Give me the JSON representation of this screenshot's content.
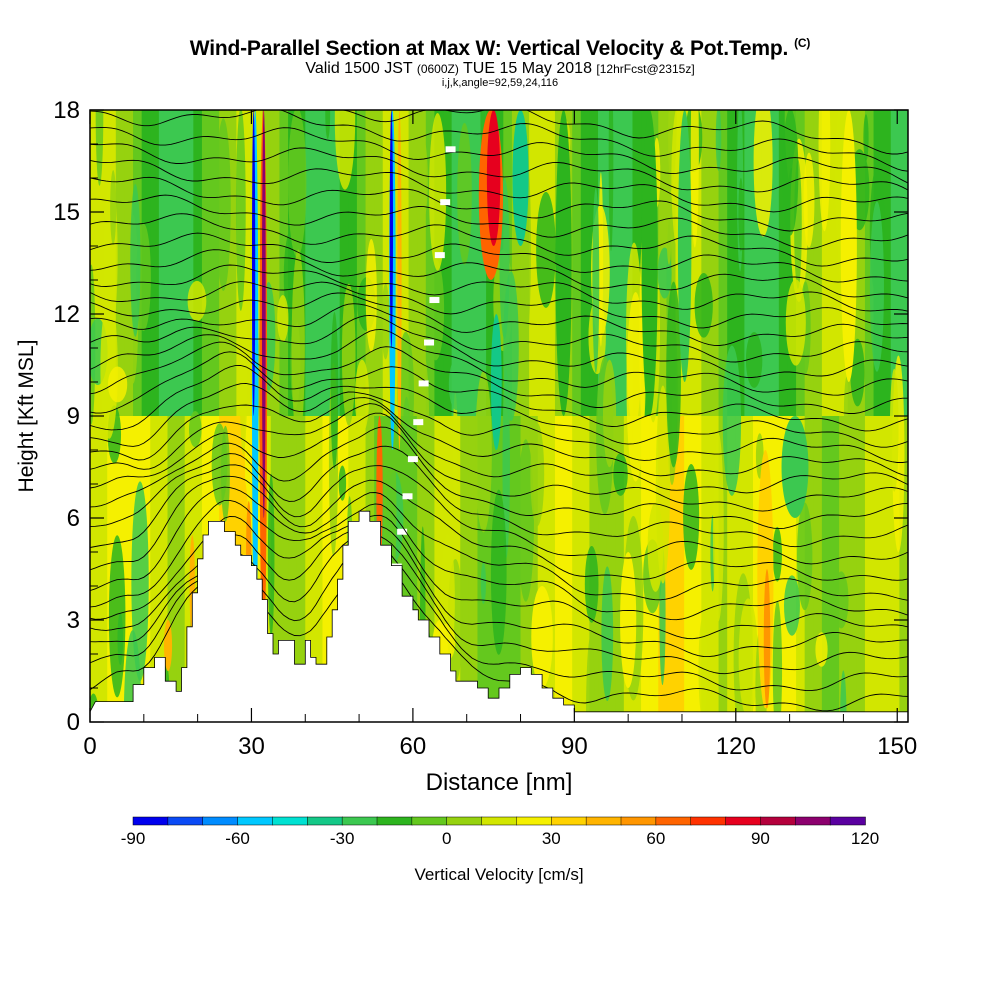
{
  "header": {
    "title": "Wind-Parallel Section at Max W: Vertical Velocity & Pot.Temp.",
    "copyright": "(C)",
    "valid_prefix": "Valid 1500 JST",
    "valid_utc": "(0600Z)",
    "valid_date": "TUE 15 May 2018",
    "forecast": "[12hrFcst@2315z]",
    "params": "i,j,k,angle=92,59,24,116"
  },
  "chart_data": {
    "type": "heatmap",
    "title": "Wind-Parallel Section at Max W: Vertical Velocity & Pot.Temp.",
    "xlabel": "Distance [nm]",
    "ylabel": "Height [Kft MSL]",
    "xlim": [
      0,
      152
    ],
    "ylim": [
      0,
      18
    ],
    "x_ticks": [
      "0",
      "30",
      "60",
      "90",
      "120",
      "150"
    ],
    "x_tick_values": [
      0,
      30,
      60,
      90,
      120,
      150
    ],
    "y_ticks": [
      "0",
      "3",
      "6",
      "9",
      "12",
      "15",
      "18"
    ],
    "y_tick_values": [
      0,
      3,
      6,
      9,
      12,
      15,
      18
    ],
    "colorbar": {
      "label": "Vertical Velocity [cm/s]",
      "min": -90,
      "max": 120,
      "step": 10,
      "tick_labels": [
        "-90",
        "-60",
        "-30",
        "0",
        "30",
        "60",
        "90",
        "120"
      ],
      "tick_values": [
        -90,
        -60,
        -30,
        0,
        30,
        60,
        90,
        120
      ],
      "colors": [
        "#0000ee",
        "#0a4af5",
        "#008cff",
        "#00c8ff",
        "#00e1d2",
        "#14c887",
        "#3cc850",
        "#2db41e",
        "#64c81e",
        "#96d20f",
        "#d2e600",
        "#f5f000",
        "#ffd200",
        "#ffb400",
        "#ff9600",
        "#ff6400",
        "#ff3200",
        "#e6001e",
        "#b4003c",
        "#8c006e",
        "#5a00a0"
      ]
    },
    "vertical_velocity_columns": [
      {
        "x": 28.5,
        "w": 2.0,
        "value": 35,
        "y0": 3.2,
        "y1": 7.2
      },
      {
        "x": 29.5,
        "w": 1.0,
        "value": 55,
        "y0": 3.5,
        "y1": 6.5
      },
      {
        "x": 30.7,
        "w": 1.2,
        "value": -60,
        "y0": 2,
        "y1": 18
      },
      {
        "x": 30.4,
        "w": 0.6,
        "value": -90,
        "y0": 9,
        "y1": 18
      },
      {
        "x": 32.2,
        "w": 1.4,
        "value": 60,
        "y0": 2,
        "y1": 18
      },
      {
        "x": 32.3,
        "w": 0.7,
        "value": 100,
        "y0": 6,
        "y1": 18
      },
      {
        "x": 53.8,
        "w": 1.2,
        "value": 60,
        "y0": 4.5,
        "y1": 9
      },
      {
        "x": 56.2,
        "w": 1.2,
        "value": -60,
        "y0": 8,
        "y1": 18
      },
      {
        "x": 56.0,
        "w": 0.6,
        "value": -85,
        "y0": 11,
        "y1": 18
      },
      {
        "x": 57.5,
        "w": 0.8,
        "value": 40,
        "y0": 8,
        "y1": 18
      },
      {
        "x": 74.5,
        "w": 4.5,
        "value": 60,
        "y0": 13,
        "y1": 18
      },
      {
        "x": 75.0,
        "w": 2.5,
        "value": 80,
        "y0": 14,
        "y1": 18
      },
      {
        "x": 75.5,
        "w": 2.0,
        "value": -40,
        "y0": 8,
        "y1": 12
      },
      {
        "x": 80.0,
        "w": 3.0,
        "value": -40,
        "y0": 14,
        "y1": 18
      },
      {
        "x": 125.5,
        "w": 3.0,
        "value": 35,
        "y0": 0.4,
        "y1": 8
      },
      {
        "x": 125.8,
        "w": 1.2,
        "value": 50,
        "y0": 0.4,
        "y1": 4.5
      },
      {
        "x": 14.5,
        "w": 1.5,
        "value": 40,
        "y0": 1.5,
        "y1": 3.0
      },
      {
        "x": 19.0,
        "w": 1.0,
        "value": 40,
        "y0": 2.5,
        "y1": 5.5
      },
      {
        "x": 65.0,
        "w": 3.0,
        "value": 20,
        "y0": 1.0,
        "y1": 3.0
      },
      {
        "x": 84.0,
        "w": 4.0,
        "value": 20,
        "y0": 1.0,
        "y1": 4.0
      },
      {
        "x": 100.0,
        "w": 3.0,
        "value": 20,
        "y0": 1.0,
        "y1": 5.0
      },
      {
        "x": 88.0,
        "w": 3.0,
        "value": -20,
        "y0": 9,
        "y1": 18
      },
      {
        "x": 104.0,
        "w": 3.0,
        "value": -20,
        "y0": 9,
        "y1": 18
      },
      {
        "x": 110.5,
        "w": 2.5,
        "value": -25,
        "y0": 10,
        "y1": 18
      },
      {
        "x": 131.0,
        "w": 5.0,
        "value": -25,
        "y0": 6,
        "y1": 9
      },
      {
        "x": 141.0,
        "w": 3.0,
        "value": 20,
        "y0": 10,
        "y1": 18
      }
    ],
    "terrain_profile_kft": [
      [
        0,
        0.3
      ],
      [
        1,
        0.6
      ],
      [
        8,
        0.6
      ],
      [
        8,
        1.1
      ],
      [
        10,
        1.1
      ],
      [
        10,
        1.6
      ],
      [
        12,
        1.6
      ],
      [
        12,
        1.9
      ],
      [
        14,
        1.9
      ],
      [
        14,
        1.2
      ],
      [
        16,
        1.2
      ],
      [
        16,
        0.9
      ],
      [
        17,
        0.9
      ],
      [
        17,
        1.6
      ],
      [
        18,
        1.6
      ],
      [
        18,
        2.8
      ],
      [
        19,
        2.8
      ],
      [
        19,
        3.8
      ],
      [
        20,
        3.8
      ],
      [
        20,
        4.8
      ],
      [
        21,
        4.8
      ],
      [
        21,
        5.5
      ],
      [
        22,
        5.5
      ],
      [
        22,
        5.9
      ],
      [
        25,
        5.9
      ],
      [
        25,
        5.6
      ],
      [
        27,
        5.6
      ],
      [
        27,
        5.2
      ],
      [
        28,
        5.2
      ],
      [
        28,
        4.9
      ],
      [
        30,
        4.9
      ],
      [
        30,
        4.6
      ],
      [
        31,
        4.6
      ],
      [
        31,
        4.2
      ],
      [
        32,
        4.2
      ],
      [
        32,
        3.6
      ],
      [
        33,
        3.6
      ],
      [
        33,
        2.6
      ],
      [
        34,
        2.6
      ],
      [
        34,
        2.0
      ],
      [
        35,
        2.0
      ],
      [
        35,
        2.4
      ],
      [
        38,
        2.4
      ],
      [
        38,
        1.7
      ],
      [
        40,
        1.7
      ],
      [
        40,
        2.4
      ],
      [
        41,
        2.4
      ],
      [
        41,
        1.9
      ],
      [
        42,
        1.9
      ],
      [
        42,
        1.7
      ],
      [
        44,
        1.7
      ],
      [
        44,
        2.5
      ],
      [
        45,
        2.5
      ],
      [
        45,
        3.3
      ],
      [
        46,
        3.3
      ],
      [
        46,
        4.2
      ],
      [
        47,
        4.2
      ],
      [
        47,
        5.2
      ],
      [
        48,
        5.2
      ],
      [
        48,
        5.9
      ],
      [
        50,
        5.9
      ],
      [
        50,
        6.2
      ],
      [
        52,
        6.2
      ],
      [
        52,
        5.9
      ],
      [
        54,
        5.9
      ],
      [
        54,
        5.2
      ],
      [
        56,
        5.2
      ],
      [
        56,
        4.6
      ],
      [
        58,
        4.6
      ],
      [
        58,
        3.7
      ],
      [
        60,
        3.7
      ],
      [
        60,
        3.3
      ],
      [
        61,
        3.3
      ],
      [
        61,
        3.0
      ],
      [
        63,
        3.0
      ],
      [
        63,
        2.5
      ],
      [
        65,
        2.5
      ],
      [
        65,
        2.0
      ],
      [
        67,
        2.0
      ],
      [
        67,
        1.5
      ],
      [
        68,
        1.5
      ],
      [
        68,
        1.2
      ],
      [
        72,
        1.2
      ],
      [
        72,
        1.0
      ],
      [
        74,
        1.0
      ],
      [
        74,
        0.7
      ],
      [
        76,
        0.7
      ],
      [
        76,
        1.0
      ],
      [
        78,
        1.0
      ],
      [
        78,
        1.4
      ],
      [
        80,
        1.4
      ],
      [
        80,
        1.6
      ],
      [
        82,
        1.6
      ],
      [
        82,
        1.4
      ],
      [
        84,
        1.4
      ],
      [
        84,
        1.0
      ],
      [
        86,
        1.0
      ],
      [
        86,
        0.7
      ],
      [
        88,
        0.7
      ],
      [
        88,
        0.5
      ],
      [
        90,
        0.5
      ],
      [
        90,
        0.3
      ],
      [
        152,
        0.3
      ]
    ],
    "potential_temperature_contours": {
      "color": "#000000",
      "levels": 34,
      "labels_shown": true
    }
  }
}
